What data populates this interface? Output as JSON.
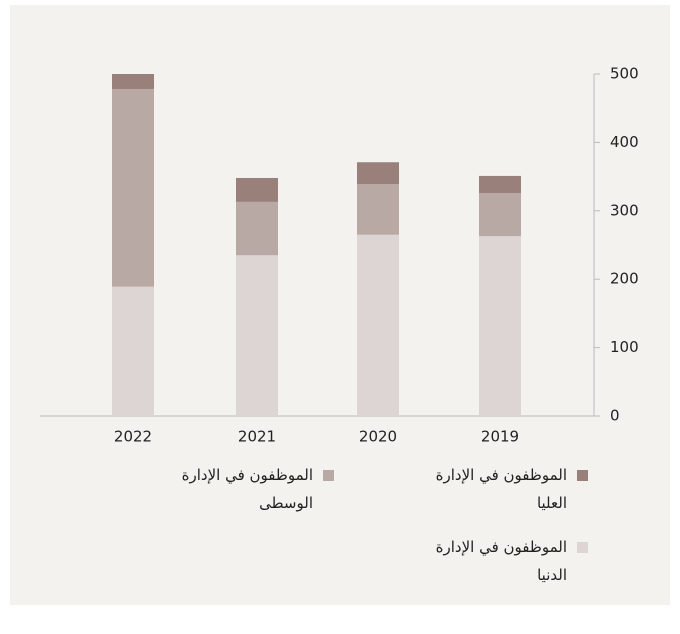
{
  "chart_data": {
    "type": "stacked_bar",
    "categories": [
      "2022",
      "2021",
      "2020",
      "2019"
    ],
    "series": [
      {
        "name": "الموظفون في الإدارة الدنيا",
        "color": "#ddd5d3",
        "values": [
          189,
          235,
          265,
          263
        ]
      },
      {
        "name": "الموظفون في الإدارة الوسطى",
        "color": "#b9a9a4",
        "values": [
          289,
          78,
          74,
          63
        ]
      },
      {
        "name": "الموظفون في الإدارة العليا",
        "color": "#9a807a",
        "values": [
          22,
          35,
          32,
          25
        ]
      }
    ],
    "ylim": [
      0,
      500
    ],
    "yticks": [
      0,
      100,
      200,
      300,
      400,
      500
    ],
    "grid": false
  }
}
